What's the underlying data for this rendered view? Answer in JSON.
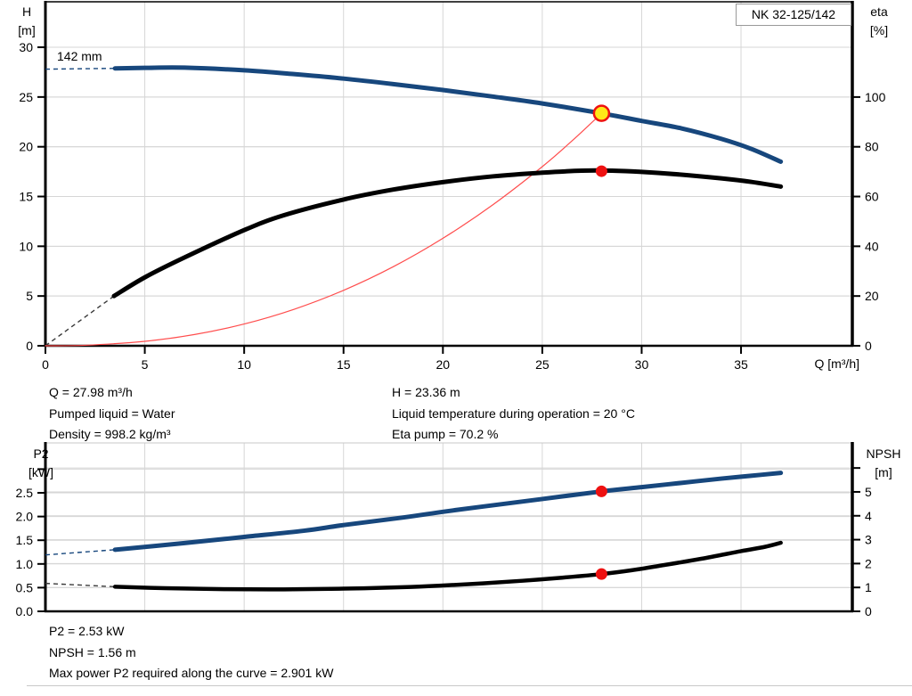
{
  "header": {
    "impeller_label": "142 mm",
    "model_box": "NK 32-125/142"
  },
  "results_top": {
    "left": [
      "Q = 27.98 m³/h",
      "Pumped liquid = Water",
      "Density = 998.2 kg/m³"
    ],
    "right": [
      "H = 23.36 m",
      "Liquid temperature during operation = 20 °C",
      "Eta pump = 70.2 %"
    ]
  },
  "results_bottom": [
    "P2 = 2.53 kW",
    "NPSH = 1.56 m",
    "Max power P2 required along the curve = 2.901 kW"
  ],
  "colors": {
    "curve_blue": "#17477d",
    "curve_black": "#000000",
    "system_red": "#ff4d4d",
    "marker_red": "#ee1111",
    "marker_yellow": "#ffe818",
    "grid": "#d6d6d6",
    "divider": "#c9c9c9"
  },
  "chart_data": [
    {
      "type": "line",
      "name": "qh-eta-chart",
      "xlabel": "Q [m³/h]",
      "ylabel_left_line1": "H",
      "ylabel_left_line2": "[m]",
      "ylabel_right_line1": "eta",
      "ylabel_right_line2": "[%]",
      "xlim": [
        0,
        40.6
      ],
      "xticks": {
        "values": [
          0,
          5,
          10,
          15,
          20,
          25,
          30,
          35
        ],
        "labels": [
          "0",
          "5",
          "10",
          "15",
          "20",
          "25",
          "30",
          "35"
        ]
      },
      "left_axis": {
        "lim": [
          0,
          34.57
        ],
        "ticks": {
          "values": [
            0,
            5,
            10,
            15,
            20,
            25,
            30
          ],
          "labels": [
            "0",
            "5",
            "10",
            "15",
            "20",
            "25",
            "30"
          ]
        },
        "unlabeled": []
      },
      "right_axis": {
        "lim": [
          0,
          138.3
        ],
        "ticks": {
          "values": [
            0,
            20,
            40,
            60,
            80,
            100
          ],
          "labels": [
            "0",
            "20",
            "40",
            "60",
            "80",
            "100"
          ]
        },
        "unlabeled": []
      },
      "series": [
        {
          "name": "system-curve",
          "axis": "left",
          "color": "#ff4d4d",
          "width": 1.2,
          "points": [
            [
              0,
              0
            ],
            [
              2,
              0.05
            ],
            [
              5,
              0.45
            ],
            [
              7.5,
              1.13
            ],
            [
              10,
              2.19
            ],
            [
              12.5,
              3.66
            ],
            [
              15,
              5.57
            ],
            [
              17.5,
              7.94
            ],
            [
              20,
              10.8
            ],
            [
              22.5,
              14.15
            ],
            [
              25,
              18.0
            ],
            [
              26.5,
              20.6
            ],
            [
              27.98,
              23.36
            ]
          ]
        },
        {
          "name": "head-curve",
          "axis": "left",
          "color": "#17477d",
          "width": 5,
          "dash_lead": {
            "points": [
              [
                0,
                27.8
              ],
              [
                3.5,
                27.88
              ]
            ],
            "color": "#17477d"
          },
          "points": [
            [
              3.5,
              27.88
            ],
            [
              5,
              27.93
            ],
            [
              7,
              27.95
            ],
            [
              10,
              27.68
            ],
            [
              12.5,
              27.3
            ],
            [
              15,
              26.85
            ],
            [
              17.5,
              26.3
            ],
            [
              20,
              25.7
            ],
            [
              22.5,
              25.05
            ],
            [
              25,
              24.35
            ],
            [
              27.98,
              23.36
            ],
            [
              30,
              22.6
            ],
            [
              32,
              21.85
            ],
            [
              34,
              20.8
            ],
            [
              35.5,
              19.8
            ],
            [
              37,
              18.5
            ]
          ]
        },
        {
          "name": "efficiency-curve",
          "axis": "right",
          "color": "#000000",
          "width": 5,
          "dash_lead": {
            "points": [
              [
                0,
                0
              ],
              [
                3.45,
                20
              ]
            ],
            "color": "#3a3a3a"
          },
          "points": [
            [
              3.45,
              20
            ],
            [
              5,
              27.5
            ],
            [
              7,
              35.5
            ],
            [
              10,
              46.5
            ],
            [
              12,
              52.5
            ],
            [
              15,
              58.8
            ],
            [
              17.5,
              62.8
            ],
            [
              20,
              65.8
            ],
            [
              22.5,
              68.1
            ],
            [
              25,
              69.6
            ],
            [
              27,
              70.4
            ],
            [
              28.5,
              70.4
            ],
            [
              30,
              69.9
            ],
            [
              32,
              68.8
            ],
            [
              34,
              67.3
            ],
            [
              35.5,
              65.9
            ],
            [
              37,
              64
            ]
          ]
        }
      ],
      "markers": [
        {
          "name": "duty-point",
          "axis": "left",
          "x": 27.98,
          "y": 23.36,
          "r": 8.5,
          "fill": "#ffe818",
          "stroke": "#ee1111",
          "stroke_width": 2.5
        },
        {
          "name": "eta-point",
          "axis": "right",
          "x": 27.98,
          "y": 70.2,
          "r": 6.5,
          "fill": "#ee1111",
          "stroke": "none",
          "stroke_width": 0
        }
      ]
    },
    {
      "type": "line",
      "name": "p2-npsh-chart",
      "xlabel": "",
      "ylabel_left_line1": "P2",
      "ylabel_left_line2": "[kW]",
      "ylabel_right_line1": "NPSH",
      "ylabel_right_line2": "[m]",
      "xlim": [
        0,
        40.6
      ],
      "xticks": {
        "values": [
          5,
          10,
          15,
          20,
          25,
          30,
          35
        ],
        "labels": []
      },
      "left_axis": {
        "lim": [
          0,
          3.553
        ],
        "ticks": {
          "values": [
            0,
            0.5,
            1.0,
            1.5,
            2.0,
            2.5
          ],
          "labels": [
            "0.0",
            "0.5",
            "1.0",
            "1.5",
            "2.0",
            "2.5"
          ]
        },
        "unlabeled": [
          3.0
        ]
      },
      "right_axis": {
        "lim": [
          0,
          7.05
        ],
        "ticks": {
          "values": [
            0,
            1,
            2,
            3,
            4,
            5
          ],
          "labels": [
            "0",
            "1",
            "2",
            "3",
            "4",
            "5"
          ]
        },
        "unlabeled": [
          6
        ]
      },
      "series": [
        {
          "name": "p2-curve",
          "axis": "left",
          "color": "#17477d",
          "width": 5,
          "dash_lead": {
            "points": [
              [
                0,
                1.19
              ],
              [
                3.5,
                1.3
              ]
            ],
            "color": "#17477d"
          },
          "points": [
            [
              3.5,
              1.3
            ],
            [
              7,
              1.44
            ],
            [
              10,
              1.57
            ],
            [
              13,
              1.7
            ],
            [
              15,
              1.82
            ],
            [
              18,
              1.98
            ],
            [
              20,
              2.1
            ],
            [
              22,
              2.21
            ],
            [
              25,
              2.37
            ],
            [
              27.98,
              2.53
            ],
            [
              30,
              2.62
            ],
            [
              32,
              2.71
            ],
            [
              34,
              2.8
            ],
            [
              35.5,
              2.86
            ],
            [
              37,
              2.92
            ]
          ]
        },
        {
          "name": "npsh-curve",
          "axis": "right",
          "color": "#000000",
          "width": 4.5,
          "dash_lead": {
            "points": [
              [
                0,
                1.17
              ],
              [
                3.5,
                1.03
              ]
            ],
            "color": "#3a3a3a"
          },
          "points": [
            [
              3.5,
              1.03
            ],
            [
              6,
              0.97
            ],
            [
              9,
              0.93
            ],
            [
              12,
              0.92
            ],
            [
              15,
              0.95
            ],
            [
              18,
              1.01
            ],
            [
              20,
              1.08
            ],
            [
              22,
              1.17
            ],
            [
              24,
              1.28
            ],
            [
              26,
              1.41
            ],
            [
              27.98,
              1.56
            ],
            [
              29.5,
              1.72
            ],
            [
              31,
              1.92
            ],
            [
              33,
              2.2
            ],
            [
              35,
              2.52
            ],
            [
              36.2,
              2.7
            ],
            [
              37,
              2.87
            ]
          ]
        }
      ],
      "markers": [
        {
          "name": "p2-point",
          "axis": "left",
          "x": 27.98,
          "y": 2.53,
          "r": 6.5,
          "fill": "#ee1111",
          "stroke": "none",
          "stroke_width": 0
        },
        {
          "name": "npsh-point",
          "axis": "right",
          "x": 27.98,
          "y": 1.56,
          "r": 6.5,
          "fill": "#ee1111",
          "stroke": "none",
          "stroke_width": 0
        }
      ]
    }
  ]
}
